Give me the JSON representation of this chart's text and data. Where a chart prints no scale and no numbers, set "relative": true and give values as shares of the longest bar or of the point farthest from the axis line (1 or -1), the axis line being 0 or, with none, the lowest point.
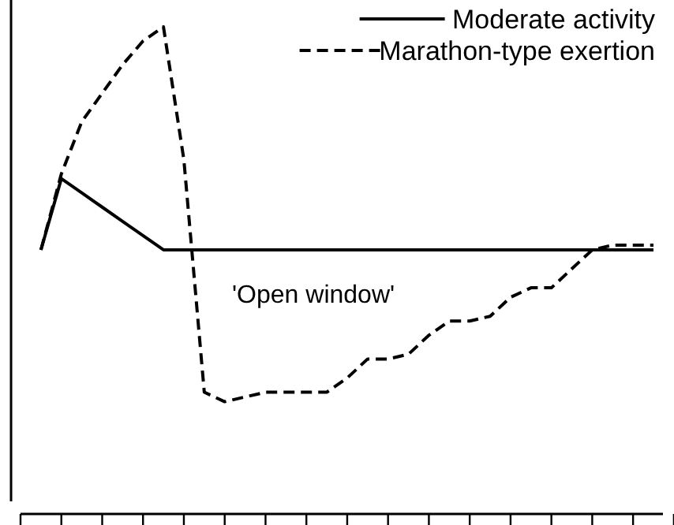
{
  "chart_data": {
    "type": "line",
    "relative": true,
    "categories": [
      null,
      null,
      null,
      null,
      null,
      null,
      null,
      null,
      null,
      null,
      null,
      null,
      null,
      null,
      null,
      null,
      null,
      null,
      null,
      null,
      null,
      null,
      null,
      null,
      null,
      null,
      null,
      null,
      null,
      null,
      null,
      null
    ],
    "series": [
      {
        "name": "Moderate activity",
        "color": "#000000",
        "line_style": "solid",
        "values": [
          null,
          0.53,
          0.68,
          0.65,
          0.62,
          0.59,
          0.56,
          0.53,
          0.53,
          0.53,
          0.53,
          0.53,
          0.53,
          0.53,
          0.53,
          0.53,
          0.53,
          0.53,
          0.53,
          0.53,
          0.53,
          0.53,
          0.53,
          0.53,
          0.53,
          0.53,
          0.53,
          0.53,
          0.53,
          0.53,
          0.53,
          0.53
        ]
      },
      {
        "name": "Marathon-type exertion",
        "color": "#000000",
        "line_style": "dashed",
        "values": [
          null,
          0.53,
          0.69,
          0.8,
          0.86,
          0.92,
          0.97,
          1,
          0.72,
          0.23,
          0.21,
          0.22,
          0.23,
          0.23,
          0.23,
          0.23,
          0.26,
          0.3,
          0.3,
          0.31,
          0.35,
          0.38,
          0.38,
          0.39,
          0.43,
          0.45,
          0.45,
          0.49,
          0.53,
          0.54,
          0.54,
          0.54
        ]
      }
    ],
    "annotations": [
      "'Open window'"
    ],
    "legend": "top right",
    "marker": "none"
  }
}
